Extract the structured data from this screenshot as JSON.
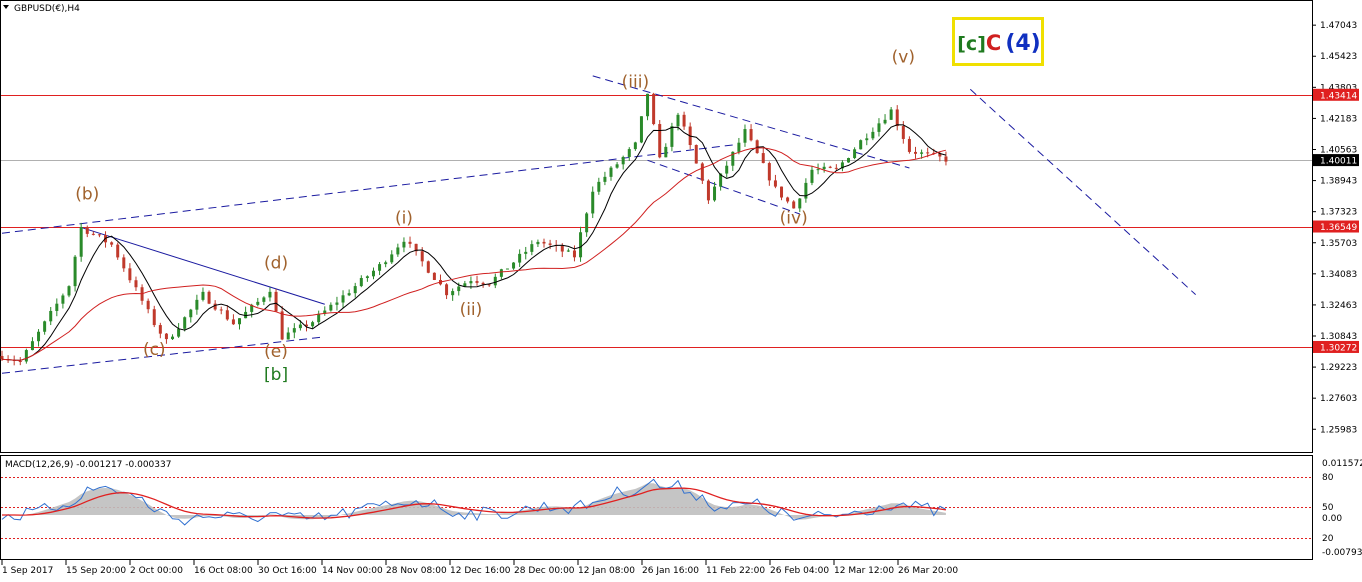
{
  "window": {
    "symbol_title": "GBPUSD(€),H4",
    "macd_header": "MACD(12,26,9) -0.001217 -0.000337"
  },
  "icons": {
    "dropdown": "triangle-down-icon"
  },
  "colors": {
    "up_candle": "#2a8a2a",
    "down_candle": "#c0392b",
    "ma_fast": "#000000",
    "ma_slow": "#d02020",
    "trendline": "#1a1aa0",
    "wave_label": "#a0622d",
    "wave_label_green": "#1f7a1f",
    "hline": "#e02020",
    "price_badge_red": "#e02020",
    "price_badge_black": "#000000",
    "macd_hist": "#bfbfbf",
    "macd_line": "#3070d0",
    "signal_line": "#e02020",
    "box_border": "#f0e000"
  },
  "wave_box": {
    "part1": "[c]",
    "part2": "C",
    "part3": "(4)"
  },
  "chart_data": {
    "type": "candlestick",
    "symbol": "GBPUSD(€)",
    "timeframe": "H4",
    "price_axis": {
      "ylim": [
        1.2485,
        1.4825
      ],
      "ticks": [
        "1.47043",
        "1.45423",
        "1.43803",
        "1.42183",
        "1.40563",
        "1.38943",
        "1.37323",
        "1.35703",
        "1.34083",
        "1.32463",
        "1.30843",
        "1.29223",
        "1.27603",
        "1.25983"
      ]
    },
    "time_axis_labels": [
      "1 Sep 2017",
      "15 Sep 20:00",
      "2 Oct 00:00",
      "16 Oct 08:00",
      "30 Oct 16:00",
      "14 Nov 00:00",
      "28 Nov 08:00",
      "12 Dec 16:00",
      "28 Dec 00:00",
      "12 Jan 08:00",
      "26 Jan 16:00",
      "11 Feb 22:00",
      "26 Feb 04:00",
      "12 Mar 12:00",
      "26 Mar 20:00"
    ],
    "price_path": {
      "bars": 155,
      "keypoints": [
        [
          0,
          1.298
        ],
        [
          3,
          1.295
        ],
        [
          11,
          1.335
        ],
        [
          13,
          1.365
        ],
        [
          18,
          1.356
        ],
        [
          25,
          1.315
        ],
        [
          27,
          1.3055
        ],
        [
          33,
          1.33
        ],
        [
          38,
          1.315
        ],
        [
          42,
          1.326
        ],
        [
          44,
          1.333
        ],
        [
          46,
          1.308
        ],
        [
          51,
          1.316
        ],
        [
          62,
          1.345
        ],
        [
          66,
          1.359
        ],
        [
          73,
          1.331
        ],
        [
          77,
          1.338
        ],
        [
          80,
          1.336
        ],
        [
          88,
          1.358
        ],
        [
          94,
          1.35
        ],
        [
          97,
          1.385
        ],
        [
          104,
          1.408
        ],
        [
          106,
          1.435
        ],
        [
          108,
          1.4
        ],
        [
          111,
          1.425
        ],
        [
          116,
          1.38
        ],
        [
          122,
          1.415
        ],
        [
          127,
          1.385
        ],
        [
          130,
          1.375
        ],
        [
          133,
          1.395
        ],
        [
          137,
          1.395
        ],
        [
          141,
          1.41
        ],
        [
          146,
          1.426
        ],
        [
          149,
          1.405
        ],
        [
          155,
          1.4005
        ]
      ]
    },
    "horizontal_levels": [
      {
        "price": 1.43414,
        "label": "1.43414",
        "color": "red"
      },
      {
        "price": 1.40011,
        "label": "1.40011",
        "color": "black"
      },
      {
        "price": 1.36549,
        "label": "1.36549",
        "color": "red"
      },
      {
        "price": 1.30272,
        "label": "1.30272",
        "color": "red"
      }
    ],
    "wave_labels": [
      {
        "text": "(b)",
        "bar": 14,
        "price": 1.3795,
        "color": "brown"
      },
      {
        "text": "(c)",
        "bar": 25,
        "price": 1.2985,
        "color": "brown"
      },
      {
        "text": "(d)",
        "bar": 45,
        "price": 1.3435,
        "color": "brown"
      },
      {
        "text": "(e)",
        "bar": 45,
        "price": 1.2975,
        "color": "brown"
      },
      {
        "text": "[b]",
        "bar": 45,
        "price": 1.2855,
        "color": "green"
      },
      {
        "text": "(i)",
        "bar": 66,
        "price": 1.367,
        "color": "brown"
      },
      {
        "text": "(ii)",
        "bar": 77,
        "price": 1.3195,
        "color": "brown"
      },
      {
        "text": "(iii)",
        "bar": 104,
        "price": 1.438,
        "color": "brown"
      },
      {
        "text": "(iv)",
        "bar": 130,
        "price": 1.367,
        "color": "brown"
      },
      {
        "text": "(v)",
        "bar": 148,
        "price": 1.451,
        "color": "brown"
      }
    ],
    "trendlines": [
      {
        "style": "dashed",
        "from": [
          0,
          1.362
        ],
        "to": [
          120,
          1.408
        ]
      },
      {
        "style": "dashed",
        "from": [
          0,
          1.289
        ],
        "to": [
          53,
          1.308
        ]
      },
      {
        "style": "solid",
        "from": [
          13,
          1.365
        ],
        "to": [
          53,
          1.325
        ]
      },
      {
        "style": "dashed",
        "from": [
          97,
          1.444
        ],
        "to": [
          149,
          1.396
        ]
      },
      {
        "style": "dashed",
        "from": [
          106,
          1.4
        ],
        "to": [
          131,
          1.372
        ]
      },
      {
        "style": "dashed",
        "from": [
          159,
          1.437
        ],
        "to": [
          196,
          1.33
        ]
      }
    ],
    "macd": {
      "params": "12,26,9",
      "main": -0.001217,
      "signal": -0.000337,
      "ticks": [
        "0.011572",
        "80",
        "50",
        "0.00",
        "20",
        "-0.007936"
      ],
      "dashed_levels": [
        80,
        50,
        20
      ]
    }
  }
}
